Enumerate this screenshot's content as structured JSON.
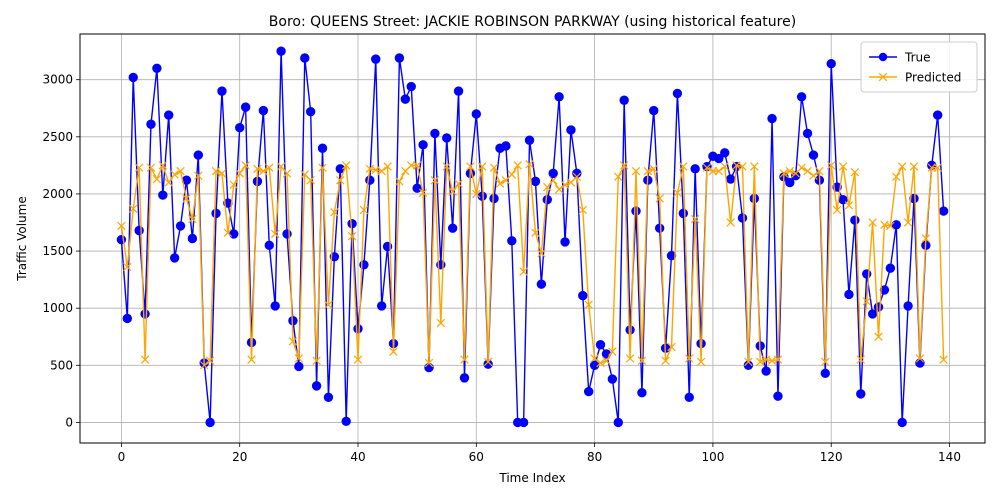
{
  "chart_data": {
    "type": "line",
    "title": "Boro: QUEENS Street: JACKIE ROBINSON PARKWAY (using historical feature)",
    "xlabel": "Time Index",
    "ylabel": "Traffic Volume",
    "xlim": [
      -7,
      146
    ],
    "ylim": [
      -180,
      3400
    ],
    "xticks": [
      0,
      20,
      40,
      60,
      80,
      100,
      120,
      140
    ],
    "yticks": [
      0,
      500,
      1000,
      1500,
      2000,
      2500,
      3000
    ],
    "grid": true,
    "legend_position": "top-right",
    "series": [
      {
        "name": "True",
        "color": "#0000ff",
        "marker": "circle",
        "values": [
          1600,
          910,
          3020,
          1680,
          950,
          2610,
          3100,
          1990,
          2690,
          1440,
          1720,
          2120,
          1610,
          2340,
          520,
          0,
          1830,
          2900,
          1920,
          1650,
          2580,
          2760,
          700,
          2110,
          2730,
          1550,
          1020,
          3250,
          1650,
          890,
          490,
          3190,
          2720,
          320,
          2400,
          220,
          1450,
          2220,
          10,
          1740,
          820,
          1380,
          2120,
          3180,
          1020,
          1540,
          690,
          3190,
          2830,
          2940,
          2050,
          2430,
          480,
          2530,
          1380,
          2490,
          1700,
          2900,
          390,
          2180,
          2700,
          1980,
          510,
          1960,
          2400,
          2420,
          1590,
          0,
          0,
          2470,
          2110,
          1210,
          1950,
          2180,
          2850,
          1580,
          2560,
          2180,
          1110,
          270,
          500,
          680,
          600,
          380,
          0,
          2820,
          810,
          1850,
          260,
          2120,
          2730,
          1700,
          650,
          1460,
          2880,
          1830,
          220,
          2220,
          690,
          2240,
          2330,
          2310,
          2360,
          2130,
          2240,
          1790,
          500,
          1960,
          670,
          450,
          2660,
          230,
          2150,
          2100,
          2160,
          2850,
          2530,
          2340,
          2120,
          430,
          3140,
          2060,
          1950,
          1120,
          1770,
          250,
          1300,
          950,
          1010,
          1160,
          1350,
          1730,
          0,
          1020,
          1960,
          520,
          1550,
          2250,
          2690,
          1850
        ]
      },
      {
        "name": "Predicted",
        "color": "#ffa500",
        "marker": "x",
        "values": [
          1720,
          1360,
          1870,
          2230,
          550,
          2230,
          2130,
          2250,
          2100,
          2170,
          2200,
          1960,
          1780,
          2160,
          500,
          540,
          2200,
          2180,
          1660,
          2080,
          2180,
          2250,
          550,
          2220,
          2200,
          2230,
          1650,
          2240,
          2180,
          710,
          560,
          2170,
          2120,
          540,
          2230,
          1030,
          1840,
          2120,
          2250,
          1630,
          550,
          1860,
          2220,
          2210,
          2200,
          2240,
          620,
          2110,
          2200,
          2250,
          2250,
          2010,
          520,
          2120,
          870,
          2240,
          2020,
          2090,
          550,
          2240,
          2000,
          2240,
          530,
          2230,
          2090,
          2120,
          2170,
          2250,
          1320,
          2260,
          1660,
          1480,
          2060,
          2120,
          2040,
          2080,
          2100,
          2150,
          1860,
          1030,
          560,
          520,
          540,
          620,
          2150,
          2250,
          560,
          2200,
          540,
          2200,
          2220,
          1960,
          540,
          660,
          2010,
          2240,
          560,
          1780,
          530,
          2230,
          2200,
          2200,
          2240,
          1750,
          2250,
          2240,
          530,
          2240,
          530,
          550,
          540,
          550,
          2180,
          2200,
          2180,
          2230,
          2200,
          2160,
          2200,
          530,
          2250,
          1860,
          2240,
          1900,
          2190,
          550,
          1060,
          1750,
          750,
          1730,
          1720,
          2150,
          2240,
          1750,
          2240,
          560,
          1610,
          2230,
          2230,
          550
        ]
      }
    ]
  }
}
